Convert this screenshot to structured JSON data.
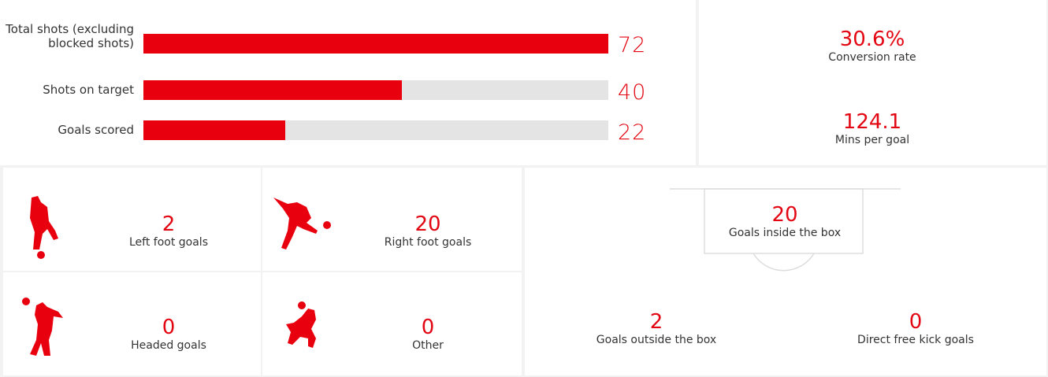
{
  "shots": {
    "rows": [
      {
        "label": "Total shots (excluding blocked shots)",
        "value": 72
      },
      {
        "label": "Shots on target",
        "value": 40
      },
      {
        "label": "Goals scored",
        "value": 22
      }
    ]
  },
  "summary": [
    {
      "value": "30.6%",
      "label": "Conversion rate"
    },
    {
      "value": 124.1,
      "label": "Mins per goal"
    }
  ],
  "goal_types": [
    {
      "value": 2,
      "label": "Left foot goals"
    },
    {
      "value": 20,
      "label": "Right foot goals"
    },
    {
      "value": 0,
      "label": "Headed goals"
    },
    {
      "value": 0,
      "label": "Other"
    }
  ],
  "locations": {
    "inside": {
      "value": 20,
      "label": "Goals inside the box"
    },
    "outside": {
      "value": 2,
      "label": "Goals outside the box"
    },
    "free_kick": {
      "value": 0,
      "label": "Direct free kick goals"
    }
  }
}
